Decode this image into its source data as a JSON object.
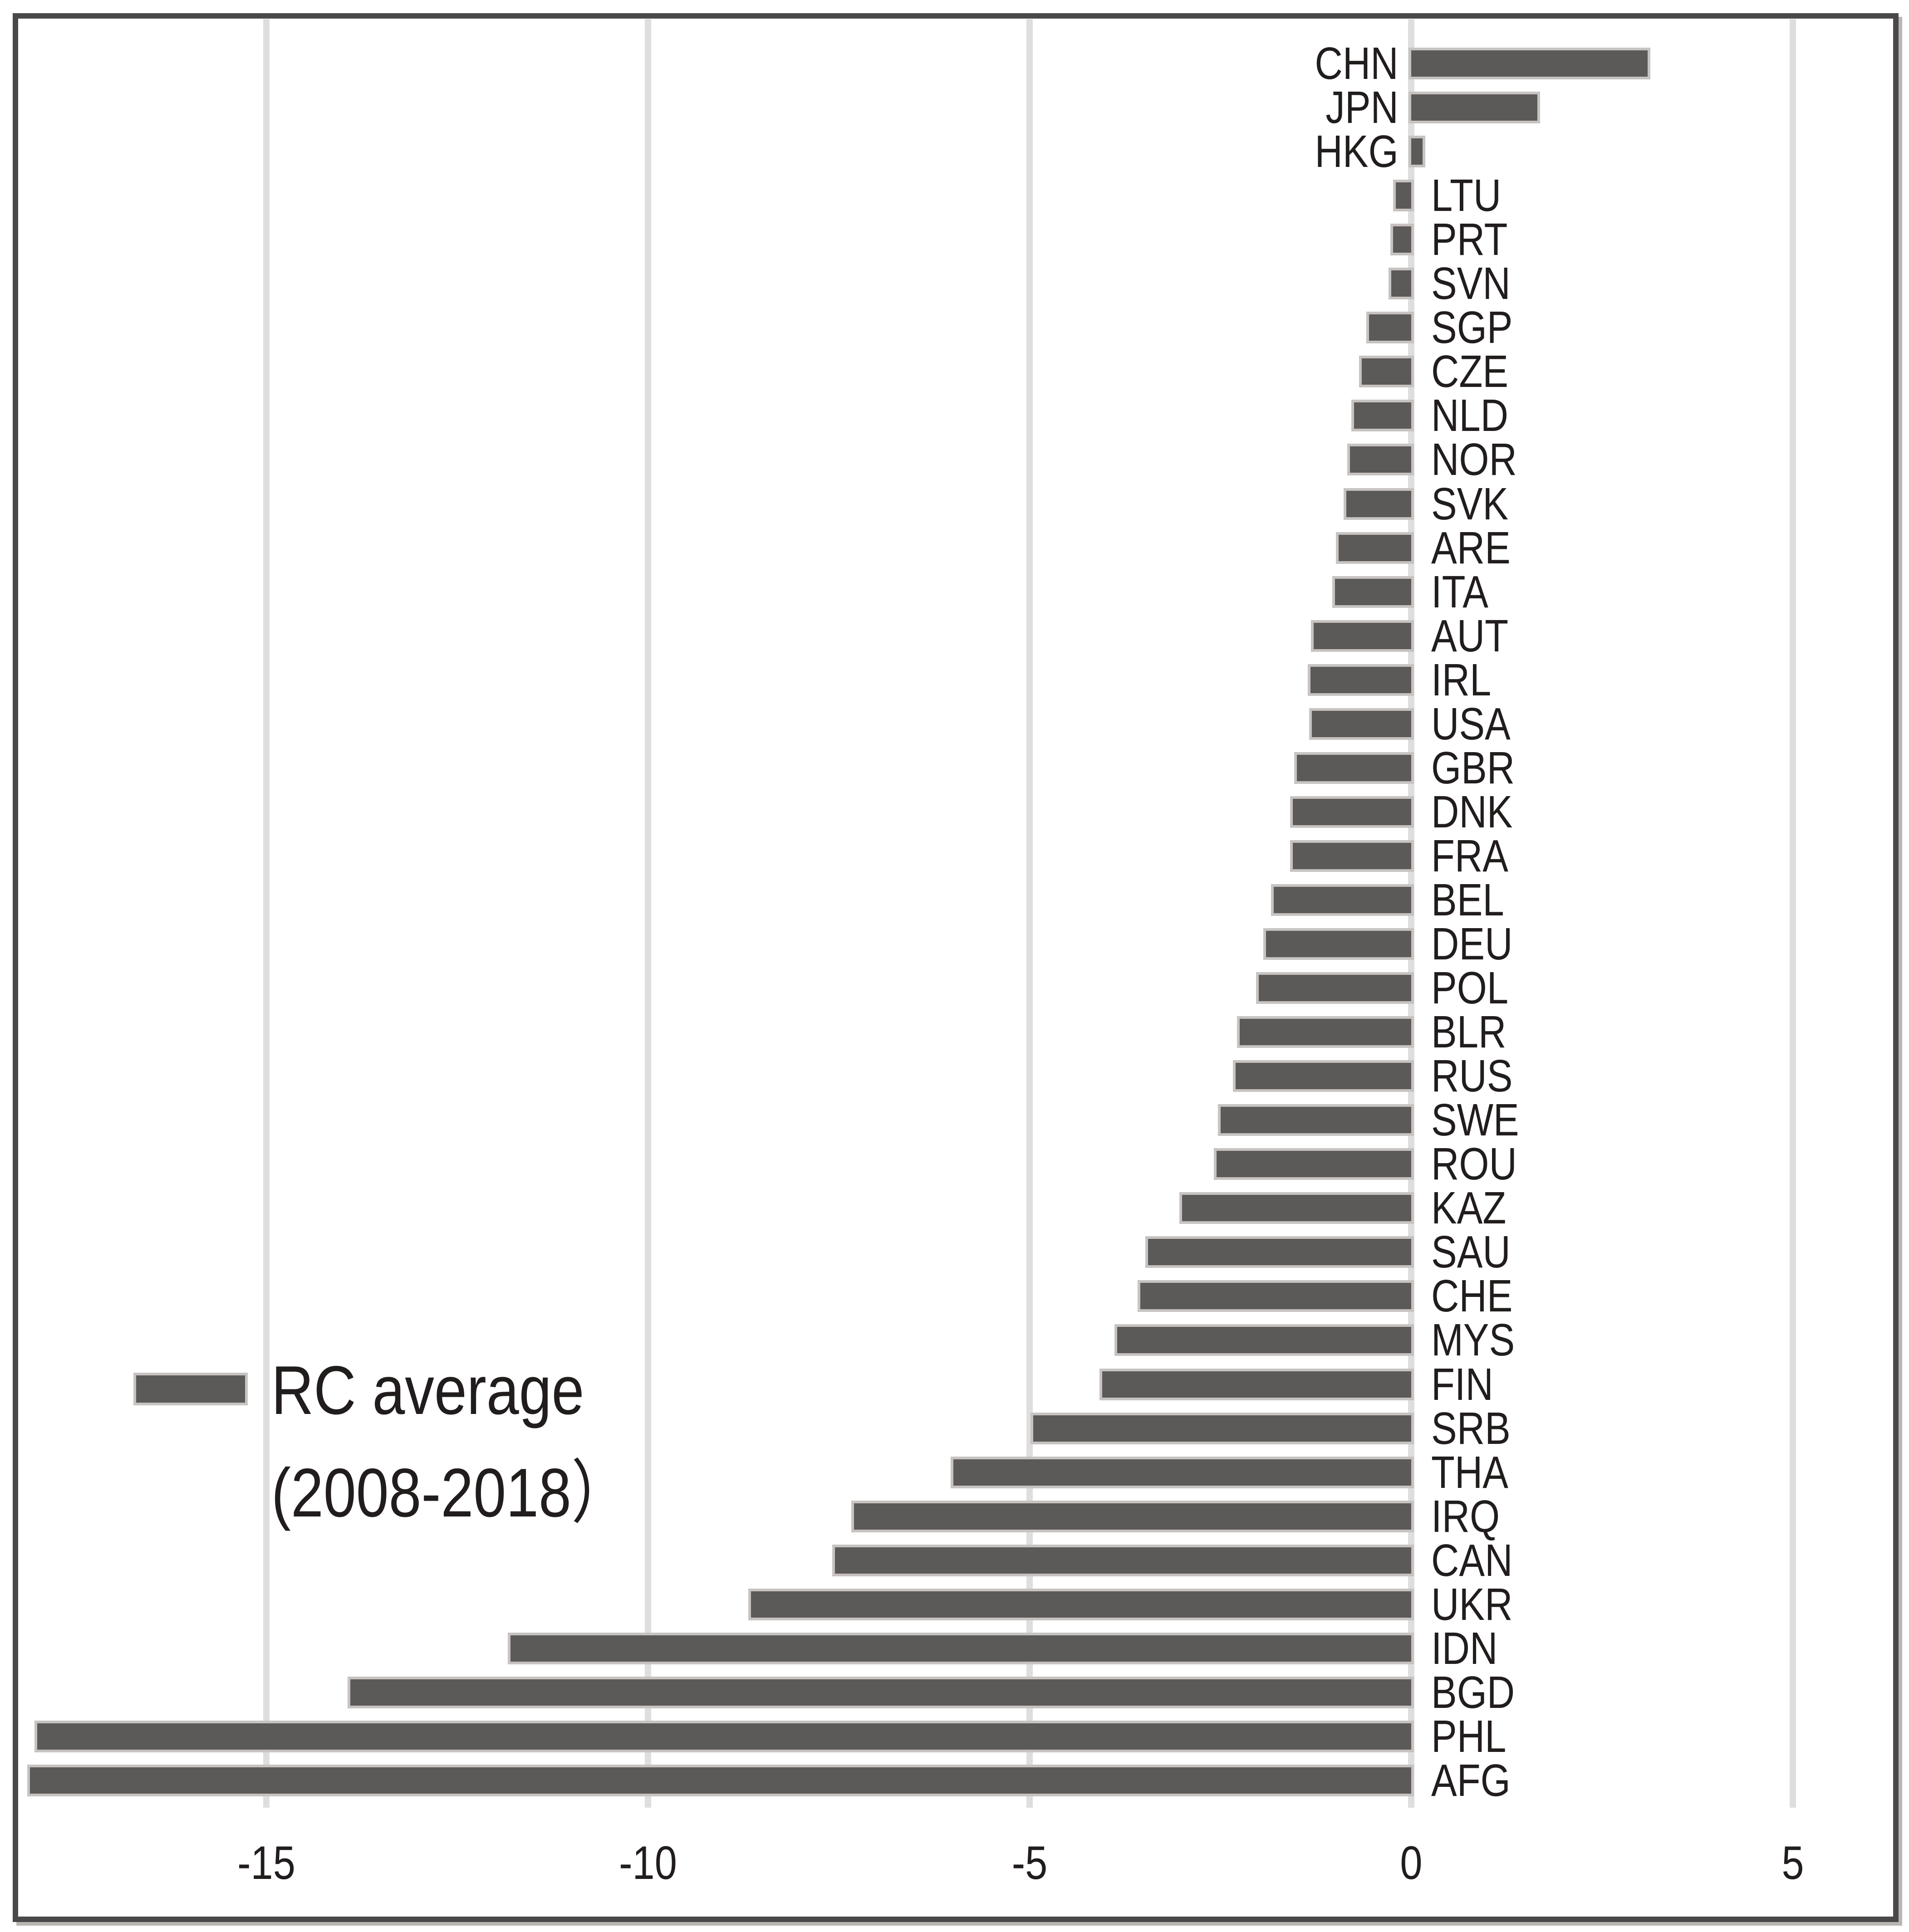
{
  "chart_data": {
    "type": "bar",
    "orientation": "horizontal",
    "title": "",
    "xlabel": "",
    "ylabel": "",
    "categories": [
      "CHN",
      "JPN",
      "HKG",
      "LTU",
      "PRT",
      "SVN",
      "SGP",
      "CZE",
      "NLD",
      "NOR",
      "SVK",
      "ARE",
      "ITA",
      "AUT",
      "IRL",
      "USA",
      "GBR",
      "DNK",
      "FRA",
      "BEL",
      "DEU",
      "POL",
      "BLR",
      "RUS",
      "SWE",
      "ROU",
      "KAZ",
      "SAU",
      "CHE",
      "MYS",
      "FIN",
      "SRB",
      "THA",
      "IRQ",
      "CAN",
      "UKR",
      "IDN",
      "BGD",
      "PHL",
      "AFG"
    ],
    "values": [
      3.1,
      1.65,
      0.15,
      -0.2,
      -0.24,
      -0.26,
      -0.55,
      -0.65,
      -0.75,
      -0.8,
      -0.85,
      -0.95,
      -1.0,
      -1.28,
      -1.32,
      -1.3,
      -1.5,
      -1.55,
      -1.55,
      -1.8,
      -1.9,
      -2.0,
      -2.25,
      -2.3,
      -2.5,
      -2.55,
      -3.0,
      -3.45,
      -3.55,
      -3.85,
      -4.05,
      -4.95,
      -6.0,
      -7.3,
      -7.55,
      -8.65,
      -11.8,
      -13.9,
      -18.0,
      -18.1
    ],
    "x_ticks": [
      -15,
      -10,
      -5,
      0,
      5
    ],
    "x_tick_labels": [
      "-15",
      "-10",
      "-5",
      "0",
      "5"
    ],
    "xlim": [
      -18.3,
      6.3
    ],
    "grid": true,
    "legend": {
      "line1": "RC average",
      "line2": "(2008-2018）",
      "position": "middle-left"
    },
    "colors": {
      "bar_fill": "#5c5a59",
      "bar_halo": "#c7c3c1",
      "gridline": "#dfdede",
      "frame_border": "#4a4848",
      "text": "#211d1c",
      "background": "#ffffff"
    }
  }
}
